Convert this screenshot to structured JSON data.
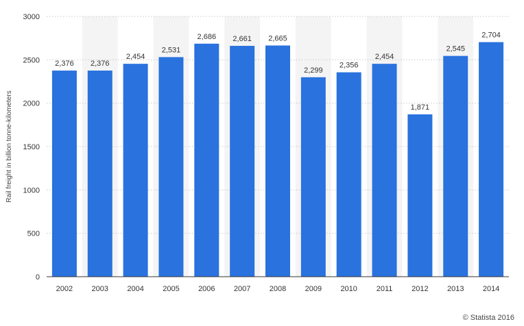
{
  "chart_data": {
    "type": "bar",
    "categories": [
      "2002",
      "2003",
      "2004",
      "2005",
      "2006",
      "2007",
      "2008",
      "2009",
      "2010",
      "2011",
      "2012",
      "2013",
      "2014"
    ],
    "values": [
      2376,
      2376,
      2454,
      2531,
      2686,
      2661,
      2665,
      2299,
      2356,
      2454,
      1871,
      2545,
      2704
    ],
    "data_labels": [
      "2,376",
      "2,376",
      "2,454",
      "2,531",
      "2,686",
      "2,661",
      "2,665",
      "2,299",
      "2,356",
      "2,454",
      "1,871",
      "2,545",
      "2,704"
    ],
    "ylabel": "Rail freight in billion tonne-kilometers",
    "ylim": [
      0,
      3000
    ],
    "yticks": [
      0,
      500,
      1000,
      1500,
      2000,
      2500,
      3000
    ],
    "grid": true,
    "legend": "none",
    "colors": {
      "bar": "#2a72de",
      "band": "#f4f4f4",
      "grid": "#c8c8c8",
      "axis": "#333333"
    }
  },
  "credit": "© Statista 2016"
}
